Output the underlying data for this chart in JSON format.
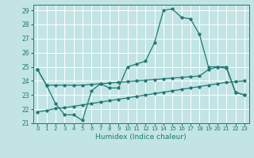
{
  "background_color": "#c2e4e4",
  "grid_color": "#ffffff",
  "line_color": "#1e7872",
  "xlim": [
    -0.5,
    23.5
  ],
  "ylim": [
    21,
    29.4
  ],
  "yticks": [
    21,
    22,
    23,
    24,
    25,
    26,
    27,
    28,
    29
  ],
  "xlabel": "Humidex (Indice chaleur)",
  "y_main": [
    24.8,
    23.7,
    22.4,
    21.6,
    21.6,
    21.2,
    23.3,
    23.8,
    23.5,
    23.5,
    25.0,
    25.2,
    25.4,
    26.7,
    29.0,
    29.1,
    28.5,
    28.4,
    27.3,
    25.0,
    25.0,
    24.9,
    23.2,
    23.0
  ],
  "y_upper": [
    24.8,
    23.7,
    23.7,
    23.7,
    23.7,
    23.7,
    23.75,
    23.8,
    23.85,
    23.9,
    23.95,
    24.0,
    24.05,
    24.1,
    24.15,
    24.2,
    24.25,
    24.3,
    24.35,
    24.8,
    25.0,
    25.0,
    23.2,
    23.0
  ],
  "y_lower": [
    21.8,
    21.9,
    22.05,
    22.1,
    22.2,
    22.3,
    22.4,
    22.5,
    22.6,
    22.7,
    22.8,
    22.9,
    23.0,
    23.1,
    23.2,
    23.3,
    23.4,
    23.5,
    23.6,
    23.7,
    23.8,
    23.9,
    23.95,
    24.0
  ]
}
